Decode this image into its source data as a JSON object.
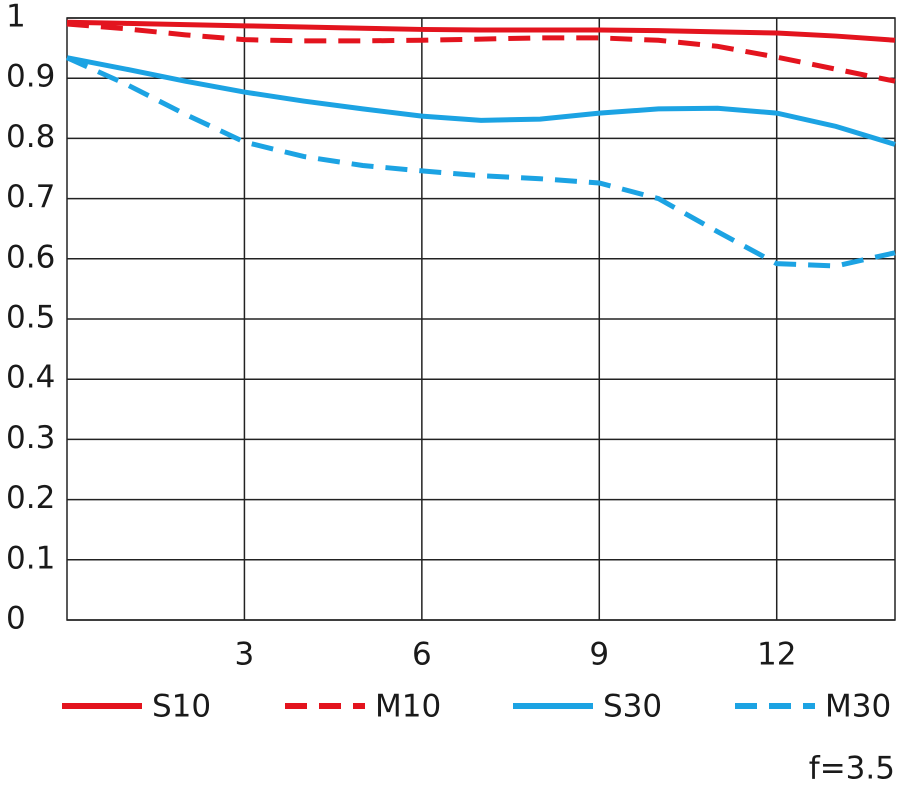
{
  "chart_data": {
    "type": "line",
    "annotation": "f=3.5",
    "x": [
      0,
      1,
      2,
      3,
      4,
      5,
      6,
      7,
      8,
      9,
      10,
      11,
      12,
      13,
      14
    ],
    "series": [
      {
        "name": "S10",
        "color": "#e3141e",
        "dash": false,
        "values": [
          0.993,
          0.991,
          0.989,
          0.987,
          0.985,
          0.983,
          0.981,
          0.98,
          0.98,
          0.98,
          0.979,
          0.977,
          0.975,
          0.97,
          0.963
        ]
      },
      {
        "name": "M10",
        "color": "#e3141e",
        "dash": true,
        "values": [
          0.99,
          0.982,
          0.972,
          0.964,
          0.962,
          0.962,
          0.963,
          0.965,
          0.967,
          0.967,
          0.963,
          0.953,
          0.935,
          0.915,
          0.895
        ]
      },
      {
        "name": "S30",
        "color": "#1ca3e3",
        "dash": false,
        "values": [
          0.934,
          0.915,
          0.895,
          0.877,
          0.862,
          0.849,
          0.837,
          0.83,
          0.832,
          0.842,
          0.849,
          0.85,
          0.842,
          0.82,
          0.79
        ]
      },
      {
        "name": "M30",
        "color": "#1ca3e3",
        "dash": true,
        "values": [
          0.934,
          0.89,
          0.84,
          0.794,
          0.77,
          0.755,
          0.746,
          0.738,
          0.733,
          0.726,
          0.7,
          0.645,
          0.592,
          0.588,
          0.61
        ]
      }
    ],
    "xlim": [
      0,
      14
    ],
    "xticks": [
      3,
      6,
      9,
      12
    ],
    "ylim": [
      0,
      1
    ],
    "yticks": [
      0,
      0.1,
      0.2,
      0.3,
      0.4,
      0.5,
      0.6,
      0.7,
      0.8,
      0.9,
      1
    ],
    "grid": true
  }
}
